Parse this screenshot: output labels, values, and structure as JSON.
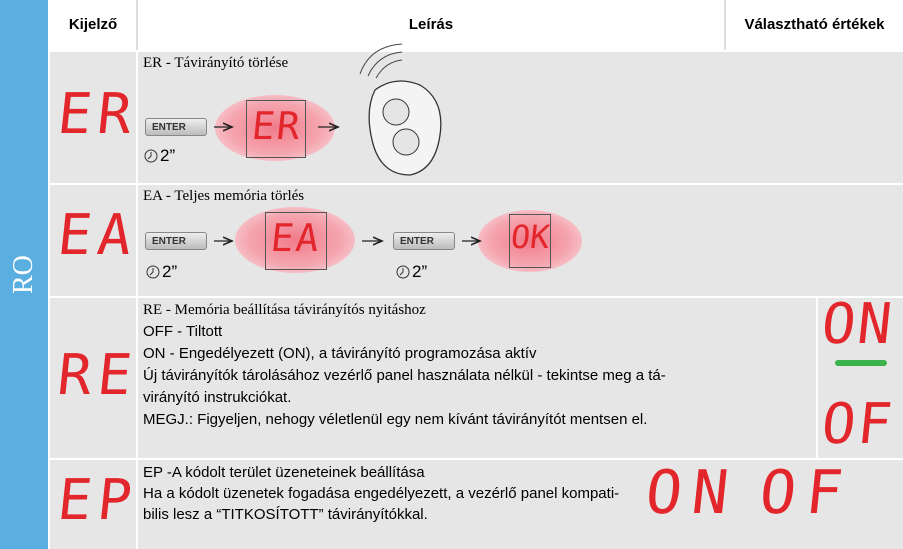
{
  "side_label": "RO",
  "headers": [
    "Kijelző",
    "Leírás",
    "Választható értékek"
  ],
  "rows": [
    {
      "code": "ER",
      "title": "ER - Távirányító törlése",
      "button": "ENTER",
      "time": "2”",
      "result": "ER"
    },
    {
      "code": "EA",
      "title": "EA - Teljes memória törlés",
      "button": "ENTER",
      "time": "2”",
      "result": "EA",
      "button2": "ENTER",
      "time2": "2”",
      "result2": "OK"
    },
    {
      "code": "RE",
      "title": "RE - Memória beállítása távirányítós nyitáshoz",
      "lines": [
        "OFF - Tiltott",
        "ON - Engedélyezett (ON), a távirányító programozása aktív",
        "Új távirányítók tárolásához vezérlő panel használata nélkül - tekintse meg a tá-",
        "virányító instrukciókat.",
        "MEGJ.: Figyeljen, nehogy véletlenül egy nem kívánt távirányítót mentsen el."
      ],
      "values": [
        "ON",
        "OF"
      ]
    },
    {
      "code": "EP",
      "title": "EP -A kódolt terület üzeneteinek beállítása",
      "lines": [
        "Ha a kódolt üzenetek fogadása engedélyezett, a vezérlő panel kompati-",
        "bilis lesz a  “TITKOSÍTOTT” távirányítókkal."
      ],
      "values": [
        "ON",
        "OF"
      ]
    }
  ]
}
